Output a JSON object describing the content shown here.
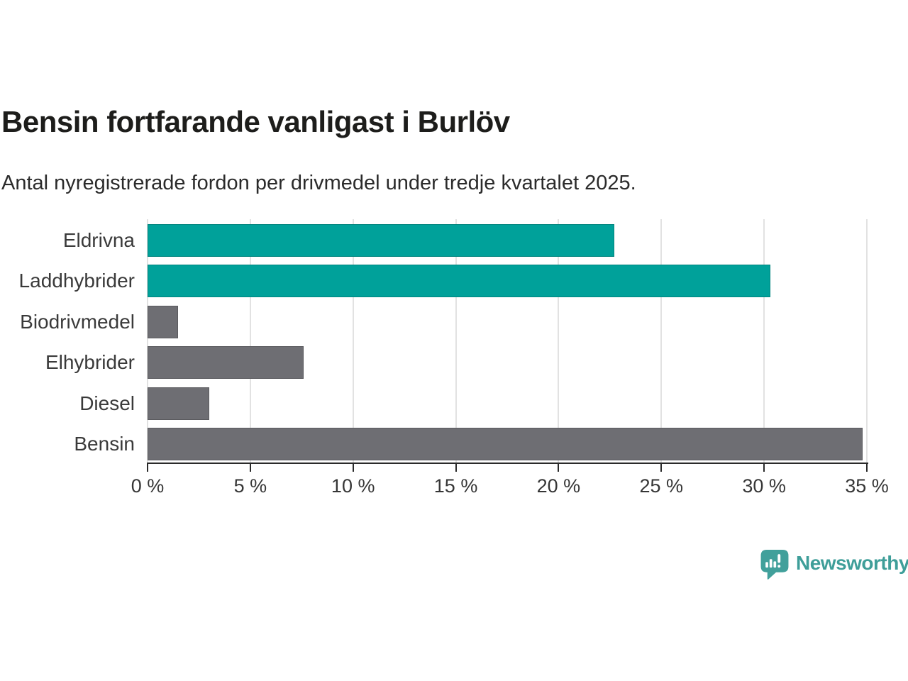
{
  "header": {
    "title": "Bensin fortfarande vanligast i Burlöv",
    "subtitle": "Antal nyregistrerade fordon per drivmedel under tredje kvartalet 2025."
  },
  "chart_data": {
    "type": "bar",
    "orientation": "horizontal",
    "title": "Bensin fortfarande vanligast i Burlöv",
    "subtitle": "Antal nyregistrerade fordon per drivmedel under tredje kvartalet 2025.",
    "categories": [
      "Eldrivna",
      "Laddhybrider",
      "Biodrivmedel",
      "Elhybrider",
      "Diesel",
      "Bensin"
    ],
    "values": [
      22.7,
      30.3,
      1.5,
      7.6,
      3.0,
      34.8
    ],
    "unit": "%",
    "bar_colors": [
      "#00a19a",
      "#00a19a",
      "#6e6e73",
      "#6e6e73",
      "#6e6e73",
      "#6e6e73"
    ],
    "xlabel": "",
    "ylabel": "",
    "xlim": [
      0,
      35
    ],
    "x_tick_values": [
      0,
      5,
      10,
      15,
      20,
      25,
      30,
      35
    ],
    "x_tick_labels": [
      "0 %",
      "5 %",
      "10 %",
      "15 %",
      "20 %",
      "25 %",
      "30 %",
      "35 %"
    ],
    "grid": true,
    "legend": false
  },
  "colors": {
    "highlight_teal": "#00a19a",
    "neutral_gray": "#6e6e73",
    "gridline": "#e2e2e2",
    "axis": "#2a2a2a",
    "title_text": "#1d1d1b",
    "brand": "#3e9e99"
  },
  "branding": {
    "logo_text": "Newsworthy",
    "logo_icon": "newsworthy-speech-bubble-chart-icon"
  }
}
